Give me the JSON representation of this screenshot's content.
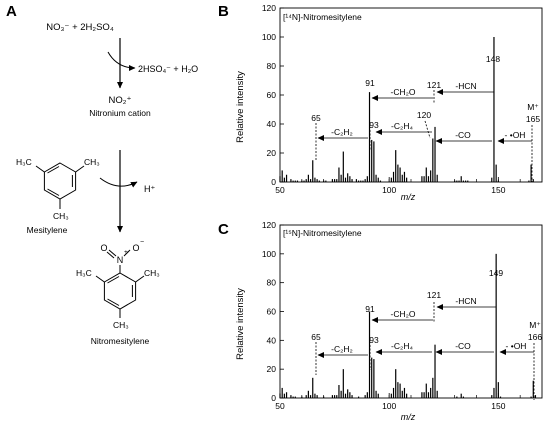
{
  "scheme": {
    "panel_letter": "A",
    "reagent_text": "NO₃⁻ + 2H₂SO₄",
    "byproduct_text": "2HSO₄⁻ + H₂O",
    "nitronium_formula": "NO₂⁺",
    "nitronium_label": "Nitronium cation",
    "proton_text": "H⁺",
    "mesitylene_label": "Mesitylene",
    "product_label": "Nitromesitylene",
    "group_ch3": "CH₃",
    "group_h3c": "H₃C",
    "atom_n": "N",
    "atom_o": "O",
    "charge_plus": "+",
    "charge_minus": "−"
  },
  "spectra": {
    "ylabel": "Relative intensity",
    "xlabel": "m/z",
    "x_ticks": [
      "50",
      "100",
      "150"
    ],
    "y_ticks": [
      "0",
      "20",
      "40",
      "60",
      "80",
      "100",
      "120"
    ],
    "panels": [
      {
        "letter": "B",
        "title": "[¹⁴N]-Nitromesitylene",
        "peak_labels": [
          "148",
          "121",
          "91",
          "93",
          "120",
          "65"
        ],
        "loss_labels": [
          "-HCN",
          "-CH₂O",
          "-C₂H₄",
          "-CO",
          "-C₂H₂",
          "- •OH"
        ],
        "mplus_label": "M⁺",
        "mplus_value": "165"
      },
      {
        "letter": "C",
        "title": "[¹⁵N]-Nitromesitylene",
        "peak_labels": [
          "149",
          "121",
          "91",
          "93",
          "65"
        ],
        "loss_labels": [
          "-HCN",
          "-CH₂O",
          "-C₂H₄",
          "-CO",
          "-C₂H₂",
          "- •OH"
        ],
        "mplus_label": "M⁺",
        "mplus_value": "166"
      }
    ]
  },
  "chart_data": [
    {
      "type": "bar",
      "title": "[¹⁴N]-Nitromesitylene",
      "xlabel": "m/z",
      "ylabel": "Relative intensity",
      "xlim": [
        50,
        170
      ],
      "ylim": [
        0,
        120
      ],
      "grid": false,
      "x": [
        50,
        51,
        52,
        53,
        55,
        56,
        57,
        58,
        60,
        61,
        62,
        63,
        64,
        65,
        66,
        67,
        68,
        70,
        71,
        74,
        75,
        76,
        77,
        78,
        79,
        80,
        81,
        82,
        83,
        85,
        86,
        87,
        88,
        89,
        90,
        91,
        92,
        93,
        94,
        95,
        96,
        101,
        102,
        103,
        104,
        105,
        106,
        107,
        108,
        115,
        116,
        117,
        118,
        119,
        120,
        121,
        122,
        130,
        131,
        132,
        133,
        134,
        135,
        136,
        147,
        148,
        149,
        150,
        164,
        165,
        166
      ],
      "values": [
        4,
        8,
        3,
        5,
        2,
        1,
        1,
        1,
        1,
        1,
        2,
        5,
        2,
        15,
        3,
        2,
        1,
        1,
        1,
        2,
        2,
        2,
        10,
        5,
        21,
        3,
        6,
        4,
        2,
        2,
        1,
        1,
        1,
        2,
        4,
        62,
        29,
        28,
        5,
        3,
        1,
        3,
        7,
        22,
        12,
        10,
        5,
        7,
        3,
        4,
        4,
        10,
        4,
        8,
        30,
        38,
        5,
        1,
        1,
        1,
        4,
        1,
        1,
        1,
        3,
        100,
        12,
        1,
        1,
        12,
        2
      ]
    },
    {
      "type": "bar",
      "title": "[¹⁵N]-Nitromesitylene",
      "xlabel": "m/z",
      "ylabel": "Relative intensity",
      "xlim": [
        50,
        170
      ],
      "ylim": [
        0,
        120
      ],
      "grid": false,
      "x": [
        50,
        51,
        52,
        53,
        55,
        56,
        57,
        60,
        62,
        63,
        64,
        65,
        66,
        67,
        70,
        74,
        75,
        76,
        77,
        78,
        79,
        80,
        81,
        82,
        83,
        86,
        89,
        90,
        91,
        92,
        93,
        94,
        95,
        101,
        102,
        103,
        104,
        105,
        106,
        107,
        108,
        115,
        116,
        117,
        118,
        119,
        120,
        121,
        122,
        131,
        133,
        134,
        147,
        148,
        149,
        150,
        151,
        165,
        166,
        167
      ],
      "values": [
        3,
        7,
        3,
        4,
        2,
        1,
        1,
        1,
        2,
        5,
        2,
        14,
        3,
        2,
        1,
        2,
        2,
        2,
        9,
        5,
        20,
        3,
        6,
        4,
        2,
        1,
        2,
        4,
        60,
        28,
        27,
        5,
        3,
        3,
        7,
        20,
        11,
        10,
        5,
        7,
        3,
        4,
        4,
        10,
        4,
        7,
        14,
        37,
        5,
        1,
        3,
        1,
        2,
        7,
        100,
        11,
        1,
        1,
        12,
        2
      ]
    }
  ]
}
